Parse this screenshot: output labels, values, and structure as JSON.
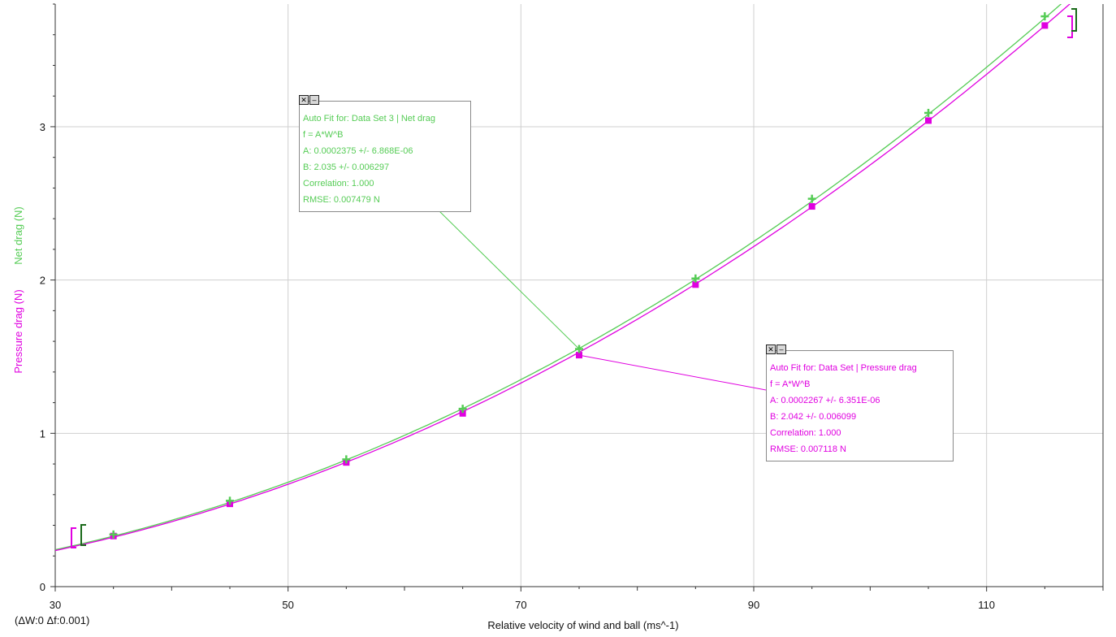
{
  "status_text": "(ΔW:0 Δf:0.001)",
  "colors": {
    "net": "#55cc55",
    "pressure": "#e000e0",
    "grid": "#cfcfcf",
    "axis": "#333333"
  },
  "chart_data": {
    "type": "scatter",
    "xlabel": "Relative velocity of wind and ball (ms^-1)",
    "ylabels": [
      "Net drag  (N)",
      "Pressure drag  (N)"
    ],
    "xlim": [
      30,
      120
    ],
    "ylim": [
      0,
      3.8
    ],
    "x_ticks": [
      30,
      50,
      70,
      90,
      110
    ],
    "y_ticks": [
      0,
      1,
      2,
      3
    ],
    "grid": true,
    "series": [
      {
        "name": "Net drag",
        "color": "#55cc55",
        "marker": "plus",
        "x": [
          35,
          45,
          55,
          65,
          75,
          85,
          95,
          105,
          115
        ],
        "y": [
          0.34,
          0.56,
          0.83,
          1.16,
          1.55,
          2.01,
          2.53,
          3.09,
          3.72
        ],
        "fit": {
          "A": 0.0002375,
          "B": 2.035
        }
      },
      {
        "name": "Pressure drag",
        "color": "#e000e0",
        "marker": "square",
        "x": [
          35,
          45,
          55,
          65,
          75,
          85,
          95,
          105,
          115
        ],
        "y": [
          0.33,
          0.54,
          0.81,
          1.13,
          1.51,
          1.97,
          2.48,
          3.04,
          3.66
        ],
        "fit": {
          "A": 0.0002267,
          "B": 2.042
        }
      }
    ],
    "fit_boxes": [
      {
        "color": "#55cc55",
        "anchor": [
          75,
          1.55
        ],
        "lines": [
          "Auto Fit for: Data Set 3 | Net drag",
          "f = A*W^B",
          "A: 0.0002375 +/- 6.868E-06",
          "B: 2.035 +/- 0.006297",
          "Correlation: 1.000",
          "RMSE: 0.007479 N"
        ]
      },
      {
        "color": "#e000e0",
        "anchor": [
          75,
          1.51
        ],
        "lines": [
          "Auto Fit for: Data Set | Pressure drag",
          "f = A*W^B",
          "A: 0.0002267 +/- 6.351E-06",
          "B: 2.042 +/- 0.006099",
          "Correlation: 1.000",
          "RMSE: 0.007118 N"
        ]
      }
    ]
  }
}
